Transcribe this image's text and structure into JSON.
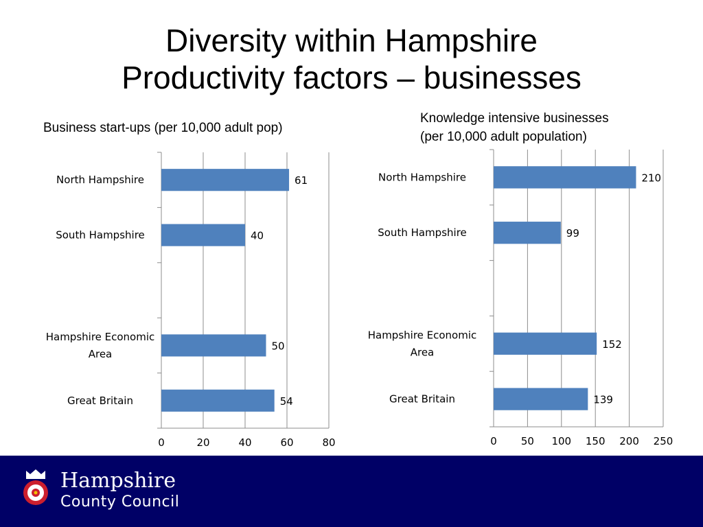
{
  "slide": {
    "title_line1": "Diversity within Hampshire",
    "title_line2": "Productivity factors – businesses"
  },
  "chart1_heading": "Business start-ups (per 10,000 adult pop)",
  "chart2_heading_line1": "Knowledge intensive businesses",
  "chart2_heading_line2": "(per 10,000 adult population)",
  "chart_data": [
    {
      "type": "bar",
      "orientation": "horizontal",
      "title": "Business start-ups (per 10,000 adult pop)",
      "categories": [
        "North Hampshire",
        "South Hampshire",
        "",
        "Hampshire Economic Area",
        "Great Britain"
      ],
      "values": [
        61,
        40,
        null,
        50,
        54
      ],
      "xlim": [
        0,
        80
      ],
      "xticks": [
        "0",
        "20",
        "40",
        "60",
        "80"
      ],
      "grid": true,
      "bar_color": "#4F81BD"
    },
    {
      "type": "bar",
      "orientation": "horizontal",
      "title": "Knowledge intensive businesses (per 10,000 adult population)",
      "categories": [
        "North Hampshire",
        "South Hampshire",
        "",
        "Hampshire Economic Area",
        "Great Britain"
      ],
      "values": [
        210,
        99,
        null,
        152,
        139
      ],
      "xlim": [
        0,
        250
      ],
      "xticks": [
        "0",
        "50",
        "100",
        "150",
        "200",
        "250"
      ],
      "grid": true,
      "bar_color": "#4F81BD"
    }
  ],
  "footer": {
    "logo_name": "Hampshire",
    "logo_sub": "County Council",
    "background": "#000066",
    "crest_icon": "hampshire-rose-crest-icon"
  }
}
